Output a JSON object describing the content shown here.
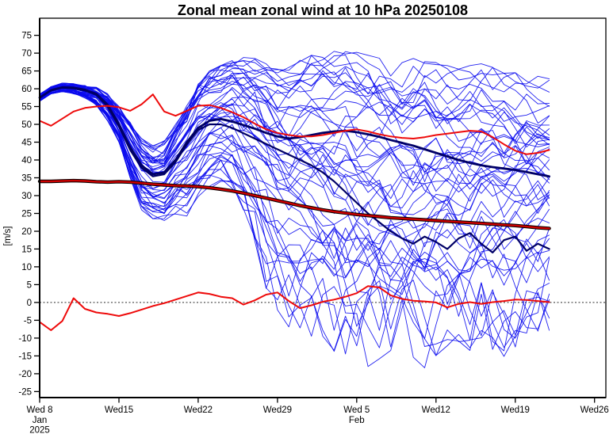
{
  "chart_data": {
    "type": "line",
    "title": "Zonal mean zonal wind at 10 hPa 20250108",
    "ylabel": "[m/s]",
    "xlabel": "",
    "grid": false,
    "legend": "none",
    "ylim": [
      -26.7,
      79.8
    ],
    "xlim_days": [
      0,
      50
    ],
    "start_date": "Wed 8 Jan 2025",
    "zero_reference_line": 0,
    "y_ticks": [
      -25,
      -20,
      -15,
      -10,
      -5,
      0,
      5,
      10,
      15,
      20,
      25,
      30,
      35,
      40,
      45,
      50,
      55,
      60,
      65,
      70,
      75
    ],
    "x_ticks": [
      {
        "day": 0,
        "label": "Wed 8",
        "sub": [
          "Jan",
          "2025"
        ]
      },
      {
        "day": 7,
        "label": "Wed15",
        "sub": []
      },
      {
        "day": 14,
        "label": "Wed22",
        "sub": []
      },
      {
        "day": 21,
        "label": "Wed29",
        "sub": []
      },
      {
        "day": 28,
        "label": "Wed 5",
        "sub": [
          "Feb"
        ]
      },
      {
        "day": 35,
        "label": "Wed12",
        "sub": []
      },
      {
        "day": 42,
        "label": "Wed19",
        "sub": []
      },
      {
        "day": 49,
        "label": "Wed26",
        "sub": []
      }
    ],
    "colors": {
      "ensemble_member": "#0a0aee",
      "ensemble_mean": "#000066",
      "climatology_core": "#cc0000",
      "climatology_edge": "#000000",
      "red_thin": "#ee0a0a",
      "zero_line": "#555555",
      "axis": "#000000"
    },
    "series": [
      {
        "name": "control-member-line",
        "color": "#000066",
        "width": 2.2,
        "values": [
          57.5,
          59.5,
          60.3,
          60.1,
          59.5,
          58.3,
          55.0,
          49.4,
          42.8,
          37.8,
          35.4,
          36.0,
          39.4,
          44.4,
          48.4,
          50.0,
          50.0,
          49.0,
          47.5,
          46.0,
          44.5,
          43.0,
          41.5,
          40.0,
          38.5,
          36.5,
          34.0,
          31.0,
          28.0,
          25.0,
          22.5,
          20.0,
          18.0,
          16.5,
          18.5,
          17.0,
          15.0,
          18.0,
          19.5,
          16.5,
          14.0,
          17.5,
          18.5,
          14.5,
          16.5,
          15.0
        ]
      },
      {
        "name": "ensemble-mean-line",
        "color": "#000066",
        "width": 2.8,
        "values": [
          57.5,
          59.6,
          60.4,
          60.3,
          59.7,
          58.6,
          55.5,
          50.0,
          43.5,
          38.5,
          36.0,
          36.5,
          40.0,
          45.0,
          49.0,
          51.0,
          51.5,
          50.8,
          49.8,
          48.8,
          47.6,
          46.6,
          46.0,
          46.4,
          47.0,
          47.6,
          48.0,
          48.2,
          47.8,
          47.2,
          46.5,
          45.6,
          44.8,
          44.0,
          43.0,
          42.0,
          41.0,
          40.0,
          39.2,
          38.5,
          38.0,
          37.6,
          37.2,
          36.6,
          36.0,
          35.4
        ]
      },
      {
        "name": "climatology-line",
        "color": "#cc0000",
        "width": 2.4,
        "edge": "#000000",
        "edge_width": 4.4,
        "values": [
          34.0,
          34.0,
          34.1,
          34.2,
          34.1,
          33.9,
          33.8,
          33.9,
          33.8,
          33.5,
          33.2,
          33.0,
          32.8,
          32.7,
          32.5,
          32.2,
          31.8,
          31.3,
          30.7,
          30.0,
          29.3,
          28.6,
          27.9,
          27.2,
          26.6,
          26.0,
          25.5,
          25.1,
          24.7,
          24.4,
          24.1,
          23.8,
          23.6,
          23.4,
          23.2,
          23.0,
          22.8,
          22.6,
          22.4,
          22.2,
          22.0,
          21.8,
          21.6,
          21.3,
          21.0,
          20.8
        ]
      },
      {
        "name": "red-upper-line",
        "color": "#ee0a0a",
        "width": 2.0,
        "values": [
          51.0,
          49.6,
          51.6,
          53.6,
          54.6,
          55.0,
          55.2,
          54.8,
          53.8,
          55.6,
          58.4,
          53.6,
          52.4,
          53.8,
          55.2,
          55.4,
          54.6,
          53.4,
          52.0,
          50.2,
          48.6,
          47.6,
          47.0,
          46.6,
          46.6,
          47.0,
          47.6,
          48.2,
          48.6,
          48.0,
          47.2,
          46.6,
          46.2,
          46.0,
          46.4,
          47.0,
          47.4,
          47.8,
          48.2,
          48.0,
          46.4,
          44.4,
          42.6,
          41.6,
          42.0,
          42.8
        ]
      },
      {
        "name": "red-near-zero-line",
        "color": "#ee0a0a",
        "width": 2.0,
        "values": [
          -5.5,
          -7.8,
          -5.2,
          1.2,
          -1.8,
          -2.8,
          -3.2,
          -3.8,
          -3.0,
          -2.0,
          -1.0,
          -0.2,
          0.8,
          1.8,
          2.8,
          2.4,
          1.6,
          1.2,
          -0.6,
          0.6,
          2.2,
          2.8,
          0.4,
          -1.6,
          -0.8,
          0.2,
          0.8,
          1.6,
          2.6,
          4.6,
          4.2,
          2.0,
          1.0,
          0.5,
          0.3,
          0.0,
          -1.4,
          -0.4,
          0.1,
          -0.4,
          0.1,
          0.4,
          0.8,
          0.7,
          0.4,
          0.1
        ]
      }
    ],
    "ensemble": {
      "name": "ensemble-members",
      "color": "#0a0aee",
      "width": 0.9,
      "count": 50,
      "seed": 20250108,
      "envelope_upper": [
        58.5,
        60.6,
        61.6,
        61.4,
        61.0,
        60.4,
        58.6,
        55.0,
        50.5,
        46.0,
        44.0,
        45.5,
        50.0,
        56.0,
        62.0,
        65.0,
        66.5,
        68.0,
        69.0,
        68.5,
        67.0,
        65.5,
        66.0,
        68.0,
        69.5,
        70.0,
        70.5,
        71.0,
        70.5,
        70.0,
        69.5,
        68.5,
        67.5,
        68.5,
        69.5,
        68.0,
        66.5,
        65.5,
        66.5,
        67.0,
        66.0,
        65.0,
        64.5,
        64.0,
        63.5,
        64.0
      ],
      "envelope_lower": [
        56.5,
        58.6,
        59.2,
        58.6,
        57.4,
        55.4,
        51.0,
        45.0,
        35.0,
        26.0,
        23.5,
        23.0,
        24.5,
        24.0,
        28.0,
        31.0,
        32.0,
        31.0,
        26.0,
        12.0,
        0.0,
        -7.0,
        -12.0,
        -14.5,
        -16.0,
        -18.0,
        -21.0,
        -23.0,
        -25.0,
        -25.0,
        -24.0,
        -22.5,
        -21.0,
        -22.0,
        -24.0,
        -20.0,
        -19.0,
        -17.5,
        -19.0,
        -16.5,
        -18.0,
        -20.0,
        -17.0,
        -15.5,
        -14.0,
        -13.0
      ]
    }
  }
}
